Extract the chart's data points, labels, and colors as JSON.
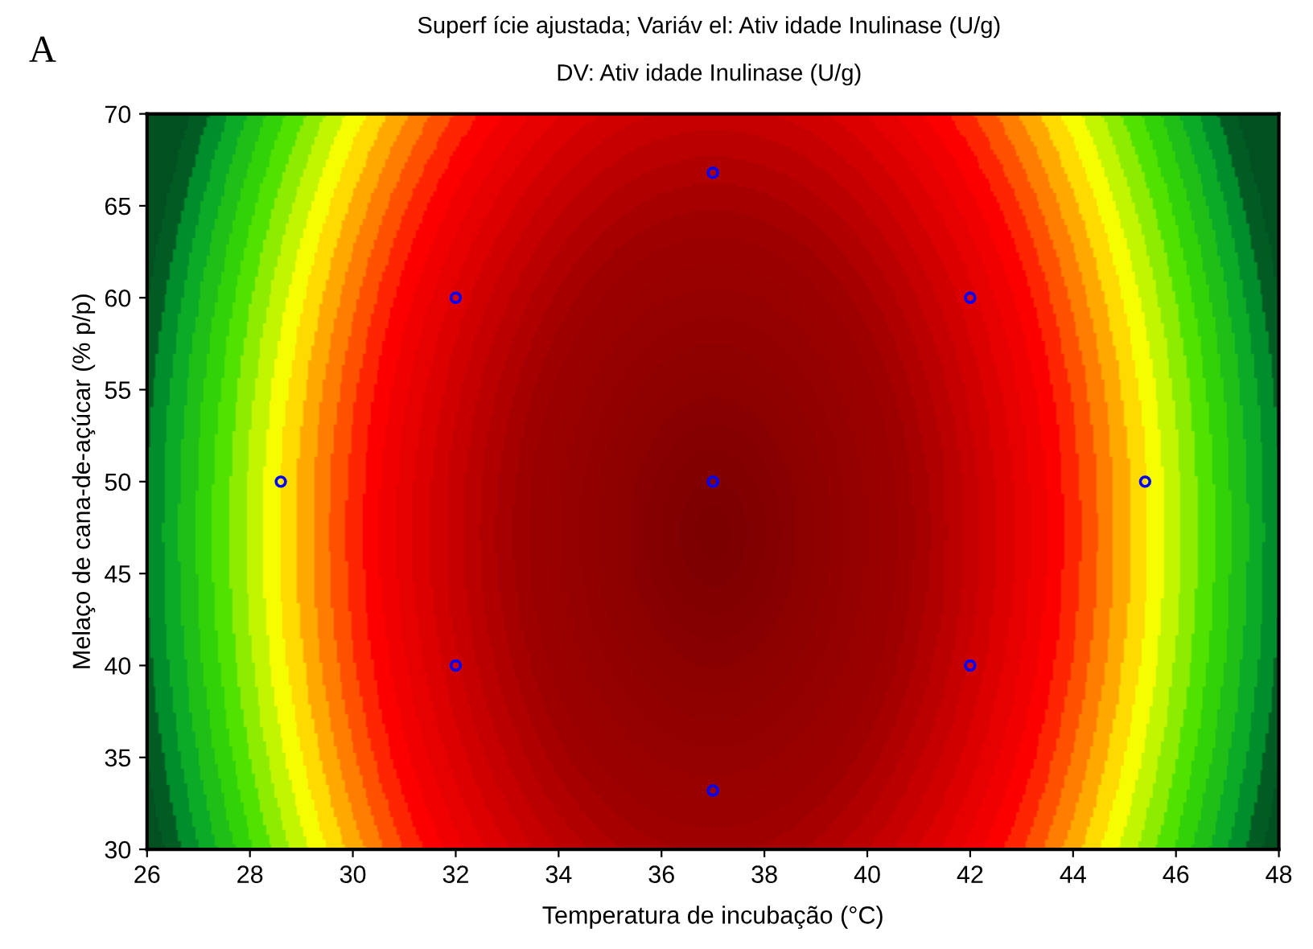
{
  "chart_data": {
    "type": "scatter",
    "title": "Superf ície ajustada; Variáv el: Ativ idade Inulinase (U/g)",
    "subtitle": "DV: Ativ idade Inulinase (U/g)",
    "xlabel": "Temperatura de incubação (°C)",
    "ylabel": "Melaço de cana-de-açúcar (% p/p)",
    "annotations": [
      "A"
    ],
    "x": [
      28.6,
      32,
      32,
      37,
      37,
      37,
      42,
      42,
      45.4
    ],
    "series": [
      {
        "color": "#0000ff",
        "values": [
          50,
          60,
          40,
          66.8,
          50,
          33.2,
          60,
          40,
          50
        ]
      }
    ],
    "marker": "circle",
    "xlim": [
      26,
      48
    ],
    "xticks": [
      26,
      28,
      30,
      32,
      34,
      36,
      38,
      40,
      42,
      44,
      46,
      48
    ],
    "ylim": [
      30,
      70
    ],
    "yticks": [
      30,
      35,
      40,
      45,
      50,
      55,
      60,
      65,
      70
    ],
    "grid": false,
    "legend": false
  }
}
